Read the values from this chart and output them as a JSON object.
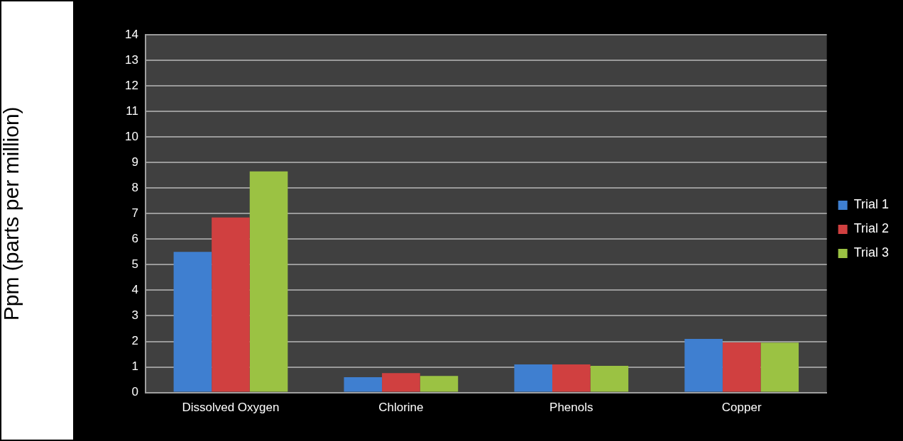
{
  "chart_data": {
    "type": "bar",
    "ylabel": "Ppm (parts per million)",
    "categories": [
      "Dissolved Oxygen",
      "Chlorine",
      "Phenols",
      "Copper"
    ],
    "series": [
      {
        "name": "Trial 1",
        "color": "#3f7fd0",
        "values": [
          5.5,
          0.6,
          1.1,
          2.1
        ]
      },
      {
        "name": "Trial 2",
        "color": "#d04040",
        "values": [
          6.85,
          0.76,
          1.1,
          1.96
        ]
      },
      {
        "name": "Trial 3",
        "color": "#9bc243",
        "values": [
          8.65,
          0.65,
          1.04,
          1.95
        ]
      }
    ],
    "ylim": [
      0,
      14
    ],
    "yticks": [
      0,
      1,
      2,
      3,
      4,
      5,
      6,
      7,
      8,
      9,
      10,
      11,
      12,
      13,
      14
    ],
    "grid": "y",
    "legend": "right"
  }
}
